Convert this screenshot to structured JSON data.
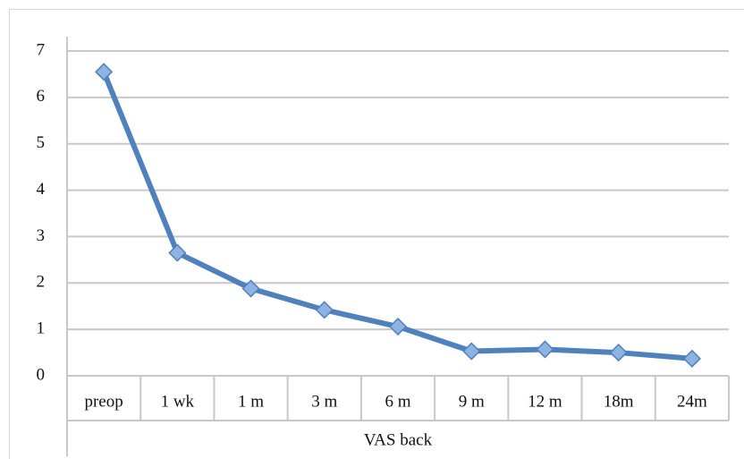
{
  "chart_data": {
    "type": "line",
    "x_label": "VAS back",
    "categories": [
      "preop",
      "1 wk",
      "1 m",
      "3 m",
      "6 m",
      "9 m",
      "12 m",
      "18m",
      "24m"
    ],
    "series": [
      {
        "name": "VAS back",
        "color": "#4f81bd",
        "values": [
          6.55,
          2.65,
          1.88,
          1.42,
          1.06,
          0.53,
          0.57,
          0.5,
          0.37
        ]
      }
    ],
    "ylim": [
      0,
      7
    ],
    "yticks": [
      0,
      1,
      2,
      3,
      4,
      5,
      6,
      7
    ],
    "grid": true
  }
}
